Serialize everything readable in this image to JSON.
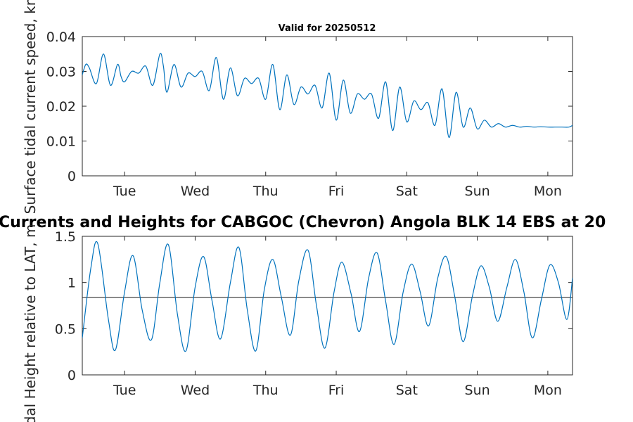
{
  "figure": {
    "subtitle": "Valid for 20250512",
    "main_title": "Currents and Heights for CABGOC (Chevron)  Angola BLK 14  EBS at 20"
  },
  "chart_data": [
    {
      "type": "line",
      "ylabel": "Surface tidal current speed, kn",
      "ylim": [
        0,
        0.04
      ],
      "yticks": [
        "0",
        "0.01",
        "0.02",
        "0.03",
        "0.04"
      ],
      "xticks": [
        "Tue",
        "Wed",
        "Thu",
        "Fri",
        "Sat",
        "Sun",
        "Mon"
      ],
      "xlim_days": [
        -0.6,
        6.35
      ],
      "color": "#0072bd",
      "series": [
        {
          "x": [
            -0.6,
            -0.55,
            -0.5,
            -0.4,
            -0.3,
            -0.2,
            -0.1,
            -0.05,
            0.0,
            0.1,
            0.2,
            0.3,
            0.4,
            0.5,
            0.55,
            0.6,
            0.7,
            0.8,
            0.9,
            1.0,
            1.1,
            1.2,
            1.3,
            1.4,
            1.5,
            1.6,
            1.7,
            1.8,
            1.9,
            2.0,
            2.1,
            2.2,
            2.3,
            2.4,
            2.5,
            2.6,
            2.7,
            2.8,
            2.9,
            3.0,
            3.1,
            3.2,
            3.3,
            3.4,
            3.5,
            3.6,
            3.7,
            3.8,
            3.9,
            4.0,
            4.1,
            4.2,
            4.3,
            4.4,
            4.5,
            4.6,
            4.7,
            4.8,
            4.9,
            5.0,
            5.1,
            5.2,
            5.3,
            5.4,
            5.5,
            5.6,
            5.7,
            5.8,
            5.9,
            6.0,
            6.1,
            6.2,
            6.3,
            6.35
          ],
          "y": [
            0.029,
            0.032,
            0.031,
            0.0265,
            0.035,
            0.026,
            0.032,
            0.0285,
            0.027,
            0.03,
            0.0295,
            0.0315,
            0.026,
            0.035,
            0.0315,
            0.024,
            0.032,
            0.0255,
            0.0295,
            0.0285,
            0.03,
            0.0245,
            0.034,
            0.022,
            0.031,
            0.023,
            0.028,
            0.0265,
            0.028,
            0.022,
            0.032,
            0.019,
            0.029,
            0.0205,
            0.0255,
            0.0235,
            0.026,
            0.0195,
            0.0295,
            0.016,
            0.0275,
            0.018,
            0.0235,
            0.022,
            0.0235,
            0.0165,
            0.027,
            0.013,
            0.0255,
            0.0155,
            0.0215,
            0.019,
            0.021,
            0.0145,
            0.025,
            0.011,
            0.024,
            0.014,
            0.0195,
            0.0135,
            0.016,
            0.014,
            0.015,
            0.014,
            0.0145,
            0.014,
            0.0142,
            0.014,
            0.0141,
            0.014,
            0.014,
            0.014,
            0.014,
            0.0145
          ],
          "note": ""
        }
      ]
    },
    {
      "type": "line",
      "ylabel": "Tidal Height relative to LAT, m",
      "ylim": [
        0,
        1.5
      ],
      "yticks": [
        "0",
        "0.5",
        "1",
        "1.5"
      ],
      "xticks": [
        "Tue",
        "Wed",
        "Thu",
        "Fri",
        "Sat",
        "Sun",
        "Mon"
      ],
      "xlim_days": [
        -0.6,
        6.35
      ],
      "color": "#0072bd",
      "reference_line": 0.84,
      "series": [
        {
          "x": [
            -0.6,
            -0.48,
            -0.38,
            -0.23,
            -0.13,
            0.0,
            0.12,
            0.25,
            0.38,
            0.5,
            0.62,
            0.75,
            0.87,
            1.0,
            1.12,
            1.24,
            1.36,
            1.5,
            1.62,
            1.74,
            1.86,
            1.98,
            2.1,
            2.22,
            2.35,
            2.47,
            2.6,
            2.72,
            2.84,
            2.97,
            3.08,
            3.21,
            3.33,
            3.46,
            3.58,
            3.7,
            3.82,
            3.95,
            4.07,
            4.19,
            4.31,
            4.44,
            4.56,
            4.68,
            4.8,
            4.93,
            5.05,
            5.17,
            5.29,
            5.42,
            5.54,
            5.66,
            5.78,
            5.91,
            6.03,
            6.15,
            6.27,
            6.35
          ],
          "y": [
            0.4,
            1.15,
            1.42,
            0.6,
            0.27,
            0.9,
            1.29,
            0.7,
            0.38,
            1.0,
            1.41,
            0.65,
            0.26,
            0.95,
            1.28,
            0.8,
            0.39,
            1.0,
            1.38,
            0.7,
            0.26,
            0.92,
            1.25,
            0.85,
            0.43,
            1.02,
            1.35,
            0.75,
            0.29,
            0.9,
            1.22,
            0.88,
            0.47,
            1.05,
            1.32,
            0.8,
            0.33,
            0.9,
            1.2,
            0.9,
            0.53,
            1.05,
            1.28,
            0.85,
            0.36,
            0.85,
            1.18,
            0.95,
            0.58,
            0.95,
            1.25,
            0.9,
            0.4,
            0.82,
            1.19,
            1.0,
            0.6,
            1.05
          ],
          "note": ""
        }
      ]
    }
  ]
}
